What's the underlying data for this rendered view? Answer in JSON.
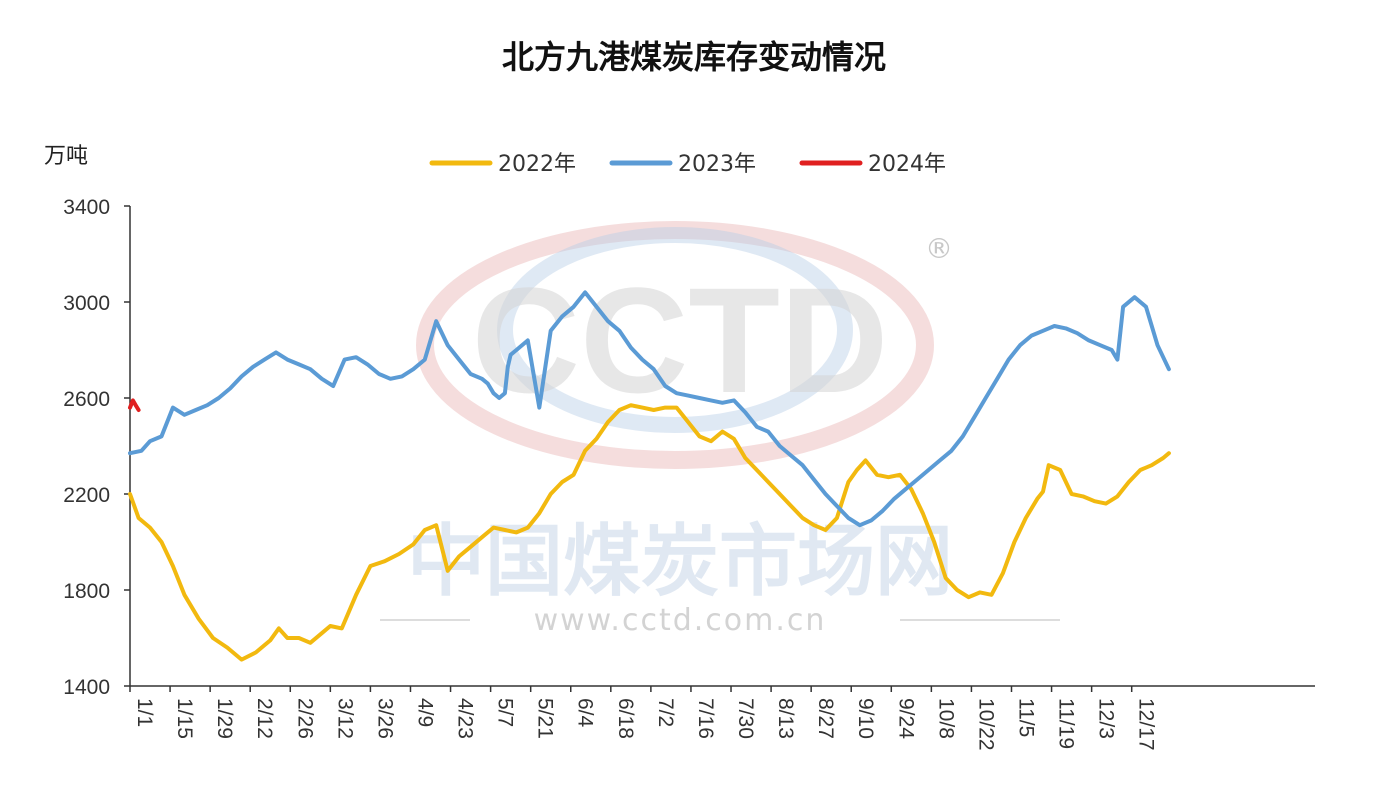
{
  "chart_data": {
    "type": "line",
    "title": "北方九港煤炭库存变动情况",
    "ylabel": "万吨",
    "ylim": [
      1400,
      3400
    ],
    "yticks": [
      "1400",
      "1800",
      "2200",
      "2600",
      "3000",
      "3400"
    ],
    "xticks": [
      "1/1",
      "1/15",
      "1/29",
      "2/12",
      "2/26",
      "3/12",
      "3/26",
      "4/9",
      "4/23",
      "5/7",
      "5/21",
      "6/4",
      "6/18",
      "7/2",
      "7/16",
      "7/30",
      "8/13",
      "8/27",
      "9/10",
      "9/24",
      "10/8",
      "10/22",
      "11/5",
      "11/19",
      "12/3",
      "12/17"
    ],
    "x_unit": "day of year",
    "legend_position": "top",
    "series": [
      {
        "name": "2022年",
        "color": "#f2b90f",
        "x": [
          1,
          4,
          8,
          12,
          16,
          20,
          25,
          30,
          35,
          40,
          45,
          50,
          53,
          56,
          60,
          64,
          68,
          71,
          75,
          80,
          85,
          90,
          95,
          100,
          104,
          108,
          112,
          116,
          120,
          124,
          128,
          132,
          136,
          140,
          144,
          148,
          152,
          156,
          160,
          164,
          168,
          172,
          176,
          180,
          184,
          188,
          192,
          196,
          200,
          204,
          208,
          212,
          216,
          220,
          224,
          228,
          232,
          236,
          240,
          244,
          248,
          252,
          255,
          258,
          262,
          266,
          270,
          274,
          278,
          282,
          286,
          290,
          294,
          298,
          302,
          306,
          310,
          314,
          318,
          320,
          322,
          326,
          330,
          334,
          338,
          342,
          346,
          350,
          354,
          358,
          362,
          364
        ],
        "values": [
          2200,
          2100,
          2060,
          2000,
          1900,
          1780,
          1680,
          1600,
          1560,
          1510,
          1540,
          1590,
          1640,
          1600,
          1600,
          1580,
          1620,
          1650,
          1640,
          1780,
          1900,
          1920,
          1950,
          1990,
          2050,
          2070,
          1880,
          1940,
          1980,
          2020,
          2060,
          2050,
          2040,
          2060,
          2120,
          2200,
          2250,
          2280,
          2380,
          2430,
          2500,
          2550,
          2570,
          2560,
          2550,
          2560,
          2560,
          2500,
          2440,
          2420,
          2460,
          2430,
          2350,
          2300,
          2250,
          2200,
          2150,
          2100,
          2070,
          2050,
          2100,
          2250,
          2300,
          2340,
          2280,
          2270,
          2280,
          2220,
          2120,
          2000,
          1850,
          1800,
          1770,
          1790,
          1780,
          1870,
          2000,
          2100,
          2180,
          2210,
          2320,
          2300,
          2200,
          2190,
          2170,
          2160,
          2190,
          2250,
          2300,
          2320,
          2350,
          2370
        ]
      },
      {
        "name": "2023年",
        "color": "#5b9bd5",
        "x": [
          1,
          5,
          8,
          12,
          16,
          20,
          24,
          28,
          32,
          36,
          40,
          44,
          48,
          52,
          56,
          60,
          64,
          68,
          72,
          76,
          80,
          84,
          88,
          92,
          96,
          100,
          104,
          108,
          112,
          116,
          120,
          124,
          126,
          128,
          130,
          132,
          133,
          134,
          136,
          140,
          144,
          148,
          152,
          156,
          160,
          164,
          168,
          172,
          176,
          180,
          184,
          188,
          192,
          196,
          200,
          204,
          208,
          212,
          216,
          220,
          224,
          228,
          232,
          236,
          240,
          244,
          248,
          252,
          256,
          260,
          264,
          268,
          272,
          276,
          280,
          284,
          288,
          292,
          296,
          300,
          304,
          308,
          312,
          316,
          320,
          324,
          328,
          332,
          336,
          340,
          344,
          346,
          348,
          352,
          356,
          360,
          364
        ],
        "values": [
          2370,
          2380,
          2420,
          2440,
          2560,
          2530,
          2550,
          2570,
          2600,
          2640,
          2690,
          2730,
          2760,
          2790,
          2760,
          2740,
          2720,
          2680,
          2650,
          2760,
          2770,
          2740,
          2700,
          2680,
          2690,
          2720,
          2760,
          2920,
          2820,
          2760,
          2700,
          2680,
          2660,
          2620,
          2600,
          2620,
          2730,
          2780,
          2800,
          2840,
          2560,
          2880,
          2940,
          2980,
          3040,
          2980,
          2920,
          2880,
          2810,
          2760,
          2720,
          2650,
          2620,
          2610,
          2600,
          2590,
          2580,
          2590,
          2540,
          2480,
          2460,
          2400,
          2360,
          2320,
          2260,
          2200,
          2150,
          2100,
          2070,
          2090,
          2130,
          2180,
          2220,
          2260,
          2300,
          2340,
          2380,
          2440,
          2520,
          2600,
          2680,
          2760,
          2820,
          2860,
          2880,
          2900,
          2890,
          2870,
          2840,
          2820,
          2800,
          2760,
          2980,
          3020,
          2980,
          2820,
          2720
        ]
      },
      {
        "name": "2024年",
        "color": "#e02020",
        "x": [
          1,
          2,
          3,
          4
        ],
        "values": [
          2560,
          2590,
          2570,
          2550
        ]
      }
    ]
  },
  "watermark": {
    "logo": "CCTD",
    "registered": "®",
    "name": "中国煤炭市场网",
    "url": "www.cctd.com.cn"
  }
}
